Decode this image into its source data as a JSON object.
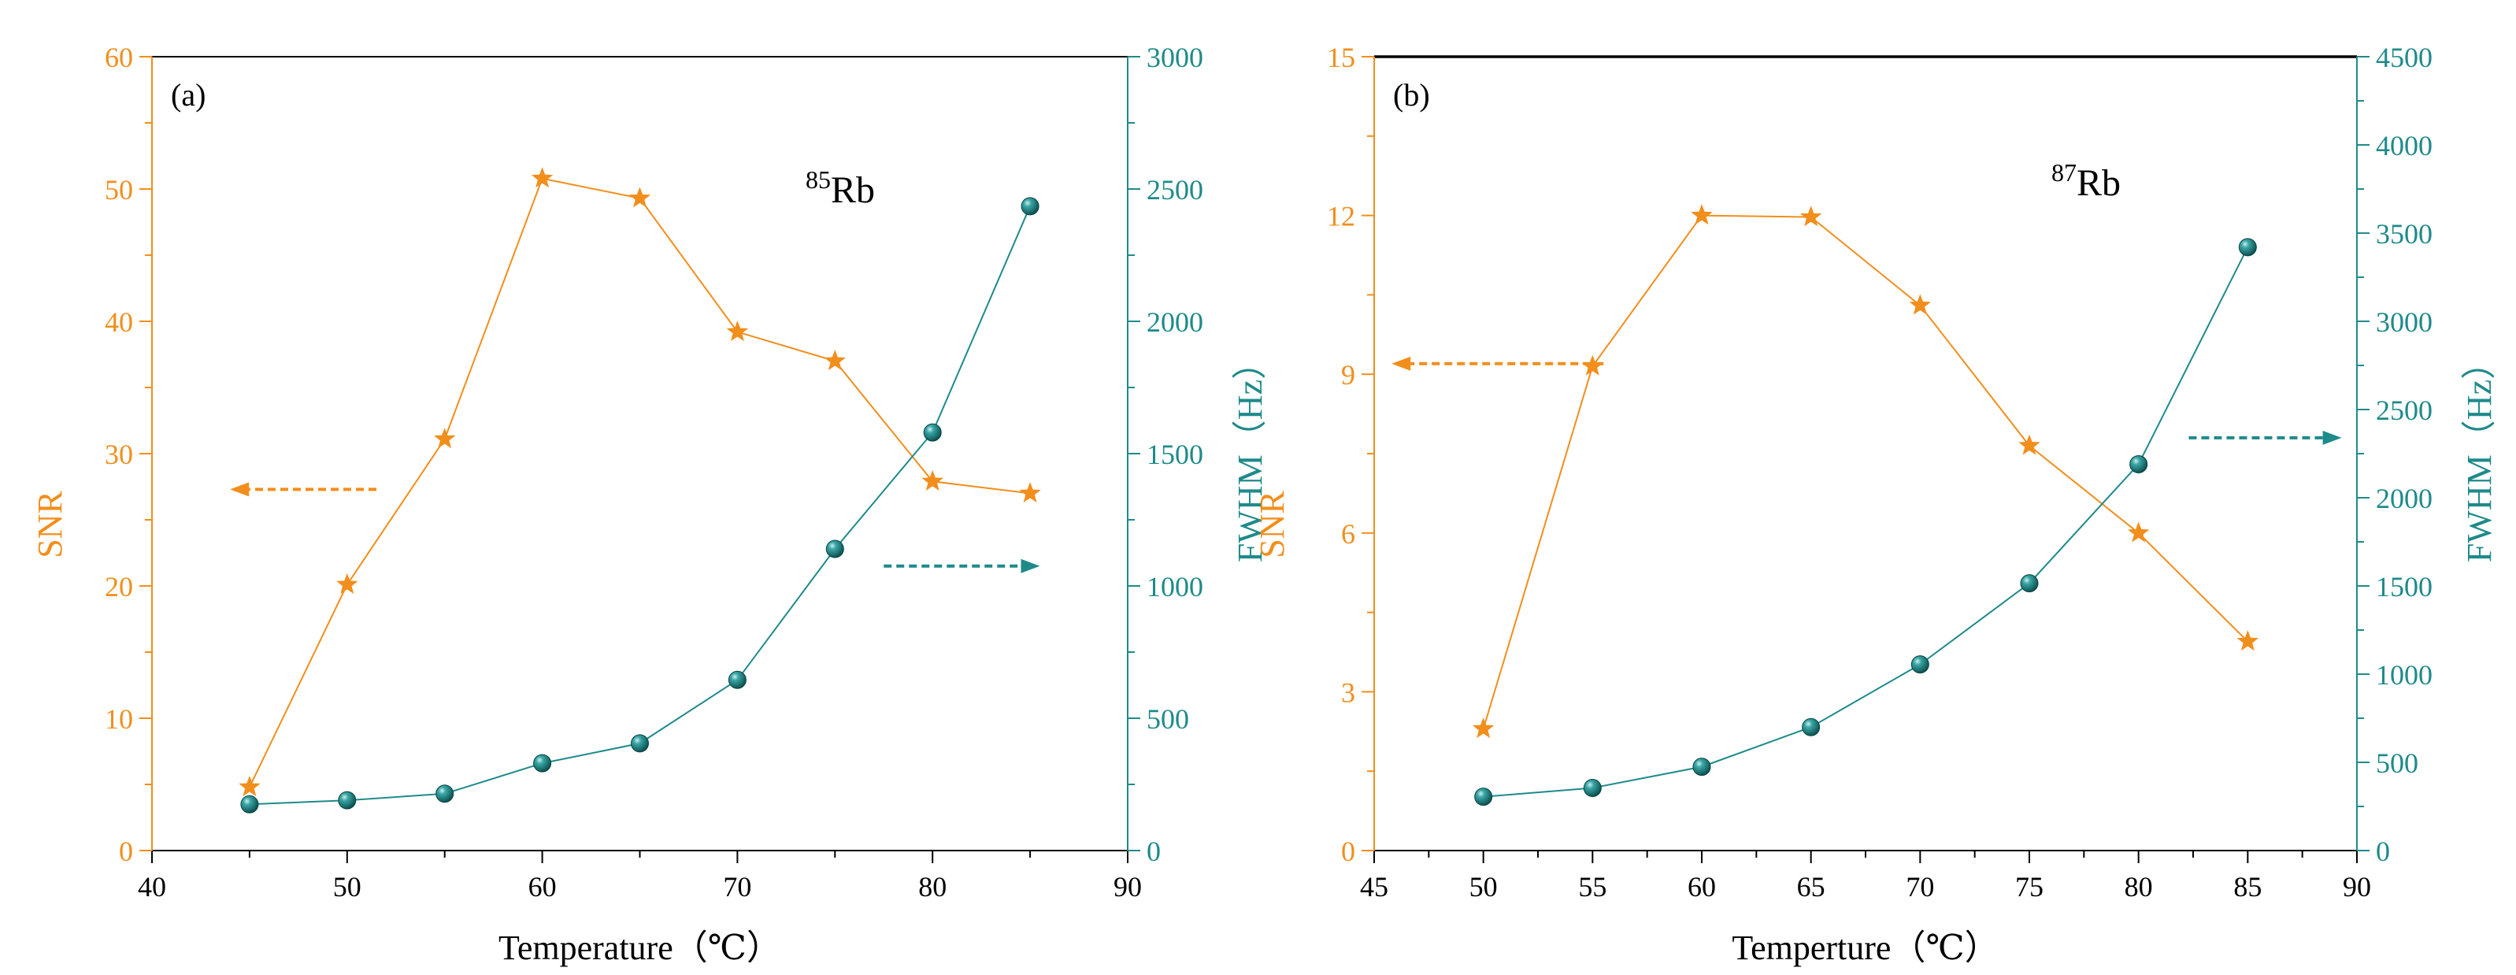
{
  "colors": {
    "snr": "#F28E1C",
    "fwhm": "#1F8A8A",
    "axis": "#000000"
  },
  "chart_data": [
    {
      "type": "line",
      "panel_label": "(a)",
      "isotope": {
        "mass": "85",
        "symbol": "Rb"
      },
      "xlabel": "Temperature（℃）",
      "ylabel_left": "SNR",
      "ylabel_right": "FWHM（Hz）",
      "xlim": [
        40,
        90
      ],
      "xticks": [
        40,
        50,
        60,
        70,
        80,
        90
      ],
      "ylim_left": [
        0,
        60
      ],
      "yticks_left": [
        0,
        10,
        20,
        30,
        40,
        50,
        60
      ],
      "ylim_right": [
        0,
        3000
      ],
      "yticks_right": [
        0,
        500,
        1000,
        1500,
        2000,
        2500,
        3000
      ],
      "series": [
        {
          "name": "SNR",
          "axis": "left",
          "marker": "star",
          "x": [
            45,
            50,
            55,
            60,
            65,
            70,
            75,
            80,
            85
          ],
          "y": [
            4.8,
            20.1,
            31.1,
            50.8,
            49.3,
            39.2,
            37.0,
            27.9,
            27.0
          ]
        },
        {
          "name": "FWHM",
          "axis": "right",
          "marker": "sphere",
          "x": [
            45,
            50,
            55,
            60,
            65,
            70,
            75,
            80,
            85
          ],
          "y": [
            175,
            190,
            215,
            330,
            405,
            645,
            1140,
            1580,
            2435
          ]
        }
      ],
      "arrows": [
        {
          "series": "SNR",
          "direction": "left",
          "x_from": 51.5,
          "x_to": 44,
          "y_left": 27.3
        },
        {
          "series": "FWHM",
          "direction": "right",
          "x_from": 77.5,
          "x_to": 85.5,
          "y_left": 21.5
        }
      ]
    },
    {
      "type": "line",
      "panel_label": "(b)",
      "isotope": {
        "mass": "87",
        "symbol": "Rb"
      },
      "xlabel": "Temperture（℃）",
      "ylabel_left": "SNR",
      "ylabel_right": "FWHM（Hz）",
      "xlim": [
        45,
        90
      ],
      "xticks": [
        45,
        50,
        55,
        60,
        65,
        70,
        75,
        80,
        85,
        90
      ],
      "ylim_left": [
        0,
        15
      ],
      "yticks_left": [
        0,
        3,
        6,
        9,
        12,
        15
      ],
      "ylim_right": [
        0,
        4500
      ],
      "yticks_right": [
        0,
        500,
        1000,
        1500,
        2000,
        2500,
        3000,
        3500,
        4000,
        4500
      ],
      "series": [
        {
          "name": "SNR",
          "axis": "left",
          "marker": "star",
          "x": [
            50,
            55,
            60,
            65,
            70,
            75,
            80,
            85
          ],
          "y": [
            2.3,
            9.15,
            12.0,
            11.97,
            10.3,
            7.65,
            6.0,
            3.95
          ]
        },
        {
          "name": "FWHM",
          "axis": "right",
          "marker": "sphere",
          "x": [
            50,
            55,
            60,
            65,
            70,
            75,
            80,
            85
          ],
          "y": [
            305,
            355,
            475,
            700,
            1055,
            1515,
            2190,
            3420
          ]
        }
      ],
      "arrows": [
        {
          "series": "SNR",
          "direction": "left",
          "x_from": 55.5,
          "x_to": 45.8,
          "y_left": 9.2
        },
        {
          "series": "FWHM",
          "direction": "right",
          "x_from": 82.3,
          "x_to": 89.3,
          "y_left": 7.8
        }
      ]
    }
  ]
}
